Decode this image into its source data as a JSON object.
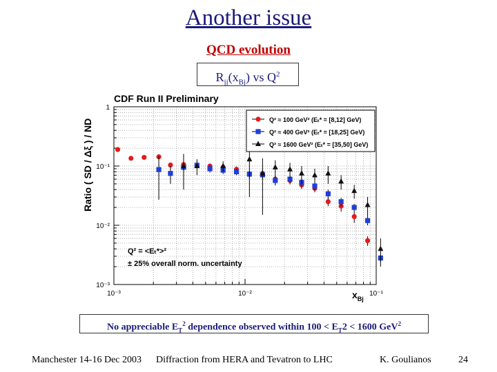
{
  "slide": {
    "title": "Another issue",
    "subtitle": "QCD evolution",
    "ratio_label": {
      "r": "R",
      "r_sub": "jj",
      "open": "(x",
      "x_sub": "Bj",
      "close": ") vs Q",
      "sup": "2"
    },
    "note": {
      "p1": "No appreciable E",
      "sub1": "T",
      "sup1": "2",
      "p2": " dependence observed within 100 < E",
      "sub2": "T",
      "p3": "2 < 1600 GeV",
      "sup2": "2"
    },
    "footer": {
      "left": "Manchester 14-16 Dec 2003",
      "center": "Diffraction from HERA and Tevatron to LHC",
      "right": "K. Goulianos",
      "page": "24"
    }
  },
  "chart_data": {
    "type": "scatter",
    "title": "CDF Run II Preliminary",
    "ylabel": "Ratio ( SD / Δξ ) / ND",
    "xlabel": "x",
    "xlabel_sub": "Bj",
    "xscale": "log",
    "yscale": "log",
    "xlim": [
      0.001,
      0.1
    ],
    "ylim": [
      0.001,
      1
    ],
    "xticks": [
      "10⁻³",
      "10⁻²",
      "10⁻¹"
    ],
    "yticks": [
      "1",
      "10⁻¹",
      "10⁻²",
      "10⁻³"
    ],
    "legend_position": "top-right",
    "annotations": [
      "Q² = <Eₜ*>²",
      "± 25% overall norm. uncertainty"
    ],
    "series": [
      {
        "name": "Q² ≈ 100 GeV² (Eₜ* = [8,12] GeV)",
        "color": "#e41a1c",
        "marker": "circle",
        "x": [
          0.00107,
          0.00135,
          0.0017,
          0.0022,
          0.0027,
          0.0034,
          0.0043,
          0.0054,
          0.0068,
          0.0086,
          0.0108,
          0.0136,
          0.017,
          0.022,
          0.027,
          0.034,
          0.043,
          0.054,
          0.068,
          0.086
        ],
        "y": [
          0.19,
          0.135,
          0.14,
          0.143,
          0.104,
          0.106,
          0.102,
          0.1,
          0.095,
          0.088,
          0.073,
          0.075,
          0.06,
          0.057,
          0.048,
          0.042,
          0.025,
          0.021,
          0.014,
          0.0055
        ],
        "err": [
          0.01,
          0.01,
          0.01,
          0.015,
          0.01,
          0.01,
          0.01,
          0.01,
          0.01,
          0.01,
          0.01,
          0.01,
          0.008,
          0.008,
          0.007,
          0.006,
          0.004,
          0.004,
          0.003,
          0.001
        ]
      },
      {
        "name": "Q² ≈ 400 GeV² (Eₜ* = [18,25] GeV)",
        "color": "#1f3fd8",
        "marker": "square",
        "x": [
          0.0022,
          0.0027,
          0.0034,
          0.0043,
          0.0054,
          0.0068,
          0.0086,
          0.0108,
          0.0136,
          0.017,
          0.022,
          0.027,
          0.034,
          0.043,
          0.054,
          0.068,
          0.086,
          0.108
        ],
        "y": [
          0.087,
          0.075,
          0.095,
          0.103,
          0.09,
          0.085,
          0.08,
          0.073,
          0.071,
          0.057,
          0.06,
          0.053,
          0.046,
          0.034,
          0.025,
          0.02,
          0.012,
          0.0028
        ],
        "err": [
          0.06,
          0.025,
          0.03,
          0.015,
          0.012,
          0.012,
          0.01,
          0.01,
          0.01,
          0.01,
          0.009,
          0.008,
          0.007,
          0.006,
          0.004,
          0.003,
          0.002,
          0.0004
        ]
      },
      {
        "name": "Q² ≈ 1600 GeV² (Eₜ* = [35,50] GeV)",
        "color": "#111111",
        "marker": "triangle",
        "x": [
          0.0034,
          0.0043,
          0.0068,
          0.0108,
          0.0136,
          0.017,
          0.022,
          0.027,
          0.034,
          0.043,
          0.054,
          0.068,
          0.086,
          0.108
        ],
        "y": [
          0.1,
          0.1,
          0.1,
          0.13,
          0.075,
          0.095,
          0.088,
          0.075,
          0.07,
          0.075,
          0.055,
          0.038,
          0.022,
          0.004
        ],
        "err": [
          0.06,
          0.03,
          0.02,
          0.1,
          0.06,
          0.03,
          0.025,
          0.025,
          0.02,
          0.025,
          0.015,
          0.01,
          0.008,
          0.002
        ]
      }
    ]
  }
}
